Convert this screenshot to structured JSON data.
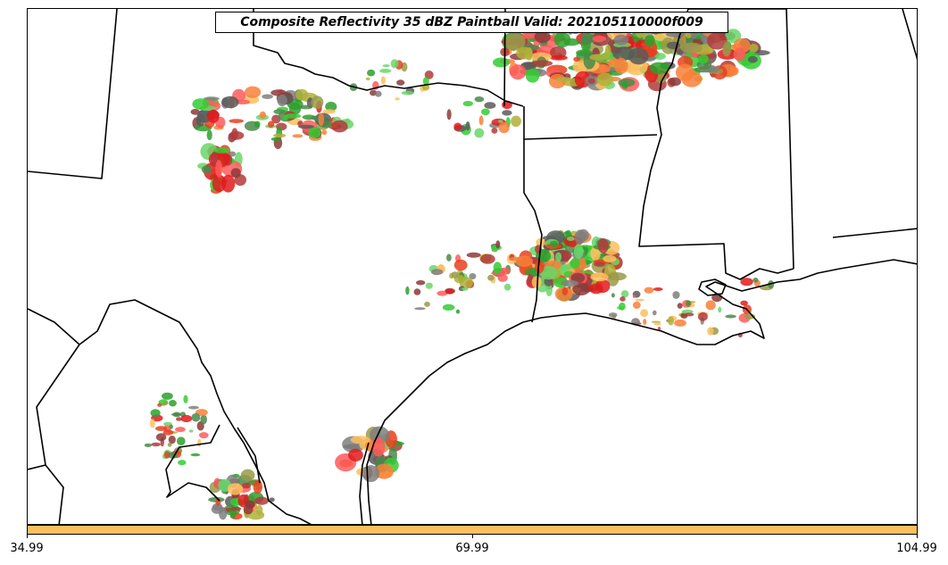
{
  "title": "Composite Reflectivity 35 dBZ Paintball Valid: 202105110000f009",
  "colorbar": {
    "fill_color": "#fdbf5f",
    "tick_labels": [
      "34.99",
      "69.99",
      "104.99"
    ]
  },
  "colors": {
    "borders": "#000000",
    "background": "#ffffff",
    "member_palette": [
      "#fdbf5f",
      "#f9803a",
      "#e8401f",
      "#e31a1c",
      "#ff5a5a",
      "#b23b3b",
      "#8c3a3a",
      "#9a9a4a",
      "#b0b03a",
      "#7f7f7f",
      "#5a5a5a",
      "#2ca02c",
      "#33cc33",
      "#6ad66a",
      "#4a8a4a"
    ]
  }
}
